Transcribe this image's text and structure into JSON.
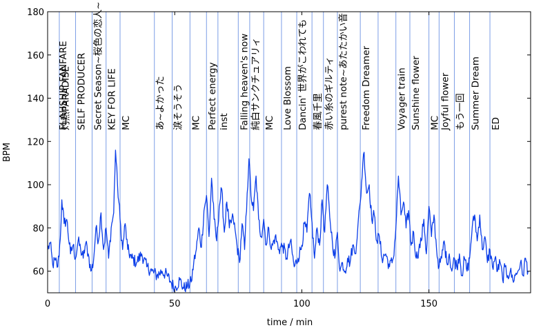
{
  "chart_data": {
    "type": "line",
    "title": "",
    "xlabel": "time / min",
    "ylabel": "BPM",
    "xlim": [
      0,
      190
    ],
    "ylim": [
      50,
      180
    ],
    "xticks": [
      0,
      50,
      100,
      150
    ],
    "yticks": [
      60,
      80,
      100,
      120,
      140,
      160,
      180
    ],
    "line_color": "#0a3de8",
    "marker_color": "#7b9de6",
    "segment_markers": [
      4.6,
      11,
      17.5,
      23,
      28.5,
      42,
      49,
      56,
      62.5,
      67,
      75,
      79.5,
      85,
      92,
      98,
      104,
      108.5,
      114,
      123,
      130,
      137,
      142.5,
      150,
      154,
      160,
      166,
      174,
      190
    ],
    "segments": [
      {
        "x": 4.6,
        "label": "FLAHSHIP FANFARE"
      },
      {
        "x": 5.5,
        "label": "灼熱PARADISE"
      },
      {
        "x": 11.8,
        "label": "SELF PRODUCER"
      },
      {
        "x": 18.3,
        "label": "Secret Season~桜色の恋人~"
      },
      {
        "x": 23.8,
        "label": "KEY FOR LIFE"
      },
      {
        "x": 29.3,
        "label": "MC"
      },
      {
        "x": 42.8,
        "label": "あ~よかった"
      },
      {
        "x": 49.8,
        "label": "涙そうそう"
      },
      {
        "x": 56.8,
        "label": "MC"
      },
      {
        "x": 63.3,
        "label": "Perfect energy"
      },
      {
        "x": 67.8,
        "label": "inst"
      },
      {
        "x": 75.8,
        "label": "Falling heaven's now"
      },
      {
        "x": 80.3,
        "label": "純白サンクチュアリィ"
      },
      {
        "x": 85.8,
        "label": "MC"
      },
      {
        "x": 92.8,
        "label": "Love Blossom"
      },
      {
        "x": 98.8,
        "label": "Dancin' 世界がこわれても"
      },
      {
        "x": 104.8,
        "label": "春風千里"
      },
      {
        "x": 109.3,
        "label": "赤い糸のギルティ"
      },
      {
        "x": 114.8,
        "label": "purest note~あたたかい音"
      },
      {
        "x": 123.8,
        "label": "Freedom Dreamer"
      },
      {
        "x": 137.8,
        "label": "Voyager train"
      },
      {
        "x": 143.3,
        "label": "Sunshine flower"
      },
      {
        "x": 150.8,
        "label": "MC"
      },
      {
        "x": 154.8,
        "label": "Joyful flower"
      },
      {
        "x": 160.8,
        "label": "もう一回"
      },
      {
        "x": 166.8,
        "label": "Summer Dream"
      },
      {
        "x": 174.8,
        "label": "ED"
      }
    ],
    "series": [
      {
        "name": "BPM",
        "anchors": [
          [
            0,
            70
          ],
          [
            1,
            73
          ],
          [
            2,
            63
          ],
          [
            3,
            65
          ],
          [
            4,
            62
          ],
          [
            5,
            75
          ],
          [
            5.6,
            93
          ],
          [
            6.5,
            82
          ],
          [
            7.5,
            84
          ],
          [
            9,
            68
          ],
          [
            10,
            72
          ],
          [
            11,
            66
          ],
          [
            12,
            74
          ],
          [
            13,
            70
          ],
          [
            14,
            66
          ],
          [
            15,
            73
          ],
          [
            16,
            68
          ],
          [
            17,
            60
          ],
          [
            18,
            64
          ],
          [
            19,
            80
          ],
          [
            20,
            74
          ],
          [
            21,
            87
          ],
          [
            22,
            70
          ],
          [
            23,
            80
          ],
          [
            24,
            66
          ],
          [
            25,
            80
          ],
          [
            26,
            87
          ],
          [
            26.7,
            116
          ],
          [
            27.5,
            100
          ],
          [
            28.5,
            84
          ],
          [
            29.5,
            70
          ],
          [
            30.5,
            82
          ],
          [
            31.5,
            70
          ],
          [
            33,
            66
          ],
          [
            35,
            64
          ],
          [
            37,
            68
          ],
          [
            39,
            62
          ],
          [
            41,
            60
          ],
          [
            43,
            58
          ],
          [
            45,
            60
          ],
          [
            47,
            58
          ],
          [
            48.5,
            55
          ],
          [
            50,
            52
          ],
          [
            52,
            56
          ],
          [
            53.5,
            52
          ],
          [
            55,
            53
          ],
          [
            56.5,
            55
          ],
          [
            57.5,
            64
          ],
          [
            58.5,
            70
          ],
          [
            59.5,
            80
          ],
          [
            60.5,
            71
          ],
          [
            61.5,
            88
          ],
          [
            62.5,
            95
          ],
          [
            63.5,
            76
          ],
          [
            64.5,
            103
          ],
          [
            65.5,
            84
          ],
          [
            66.5,
            74
          ],
          [
            67.5,
            90
          ],
          [
            68.5,
            98
          ],
          [
            69.5,
            78
          ],
          [
            70.5,
            92
          ],
          [
            71.5,
            80
          ],
          [
            73,
            85
          ],
          [
            74.5,
            72
          ],
          [
            75.5,
            64
          ],
          [
            76.5,
            82
          ],
          [
            77.5,
            70
          ],
          [
            78.5,
            96
          ],
          [
            79.2,
            112
          ],
          [
            80,
            95
          ],
          [
            81,
            88
          ],
          [
            82,
            104
          ],
          [
            83,
            84
          ],
          [
            84,
            76
          ],
          [
            85,
            84
          ],
          [
            86,
            72
          ],
          [
            87,
            80
          ],
          [
            88,
            70
          ],
          [
            89.5,
            76
          ],
          [
            91,
            70
          ],
          [
            92.5,
            72
          ],
          [
            94,
            66
          ],
          [
            95.5,
            74
          ],
          [
            97,
            62
          ],
          [
            98.5,
            66
          ],
          [
            100,
            72
          ],
          [
            101,
            82
          ],
          [
            102,
            78
          ],
          [
            103,
            96
          ],
          [
            103.8,
            85
          ],
          [
            105,
            66
          ],
          [
            106,
            80
          ],
          [
            107,
            72
          ],
          [
            108,
            93
          ],
          [
            109,
            78
          ],
          [
            110,
            100
          ],
          [
            111,
            85
          ],
          [
            112,
            74
          ],
          [
            113,
            66
          ],
          [
            114,
            78
          ],
          [
            115,
            60
          ],
          [
            116,
            64
          ],
          [
            117,
            60
          ],
          [
            118,
            66
          ],
          [
            119,
            64
          ],
          [
            120,
            72
          ],
          [
            121,
            68
          ],
          [
            122,
            80
          ],
          [
            123,
            92
          ],
          [
            124,
            110
          ],
          [
            124.5,
            115
          ],
          [
            125.5,
            96
          ],
          [
            126.5,
            100
          ],
          [
            127.5,
            84
          ],
          [
            128.5,
            86
          ],
          [
            129.5,
            74
          ],
          [
            130.5,
            76
          ],
          [
            131.5,
            66
          ],
          [
            133,
            68
          ],
          [
            134.5,
            62
          ],
          [
            136,
            66
          ],
          [
            137,
            80
          ],
          [
            138,
            104
          ],
          [
            139,
            86
          ],
          [
            140,
            92
          ],
          [
            141,
            80
          ],
          [
            142,
            88
          ],
          [
            143,
            72
          ],
          [
            144,
            78
          ],
          [
            145,
            66
          ],
          [
            146,
            70
          ],
          [
            147,
            74
          ],
          [
            148,
            84
          ],
          [
            149,
            68
          ],
          [
            150,
            90
          ],
          [
            151,
            76
          ],
          [
            152,
            86
          ],
          [
            153,
            70
          ],
          [
            154,
            62
          ],
          [
            155,
            66
          ],
          [
            156,
            74
          ],
          [
            157,
            64
          ],
          [
            158,
            68
          ],
          [
            159,
            60
          ],
          [
            160,
            66
          ],
          [
            161,
            62
          ],
          [
            162,
            68
          ],
          [
            163,
            58
          ],
          [
            164,
            66
          ],
          [
            165,
            60
          ],
          [
            166,
            66
          ],
          [
            167,
            80
          ],
          [
            168,
            86
          ],
          [
            169,
            74
          ],
          [
            170,
            86
          ],
          [
            171,
            70
          ],
          [
            172,
            76
          ],
          [
            173,
            64
          ],
          [
            174,
            70
          ],
          [
            175,
            62
          ],
          [
            176,
            66
          ],
          [
            177,
            60
          ],
          [
            178,
            64
          ],
          [
            179,
            56
          ],
          [
            180,
            62
          ],
          [
            181,
            58
          ],
          [
            182,
            60
          ],
          [
            183,
            56
          ],
          [
            184,
            58
          ],
          [
            185,
            60
          ],
          [
            186,
            64
          ],
          [
            187,
            58
          ],
          [
            188,
            66
          ],
          [
            189,
            60
          ]
        ]
      }
    ]
  }
}
